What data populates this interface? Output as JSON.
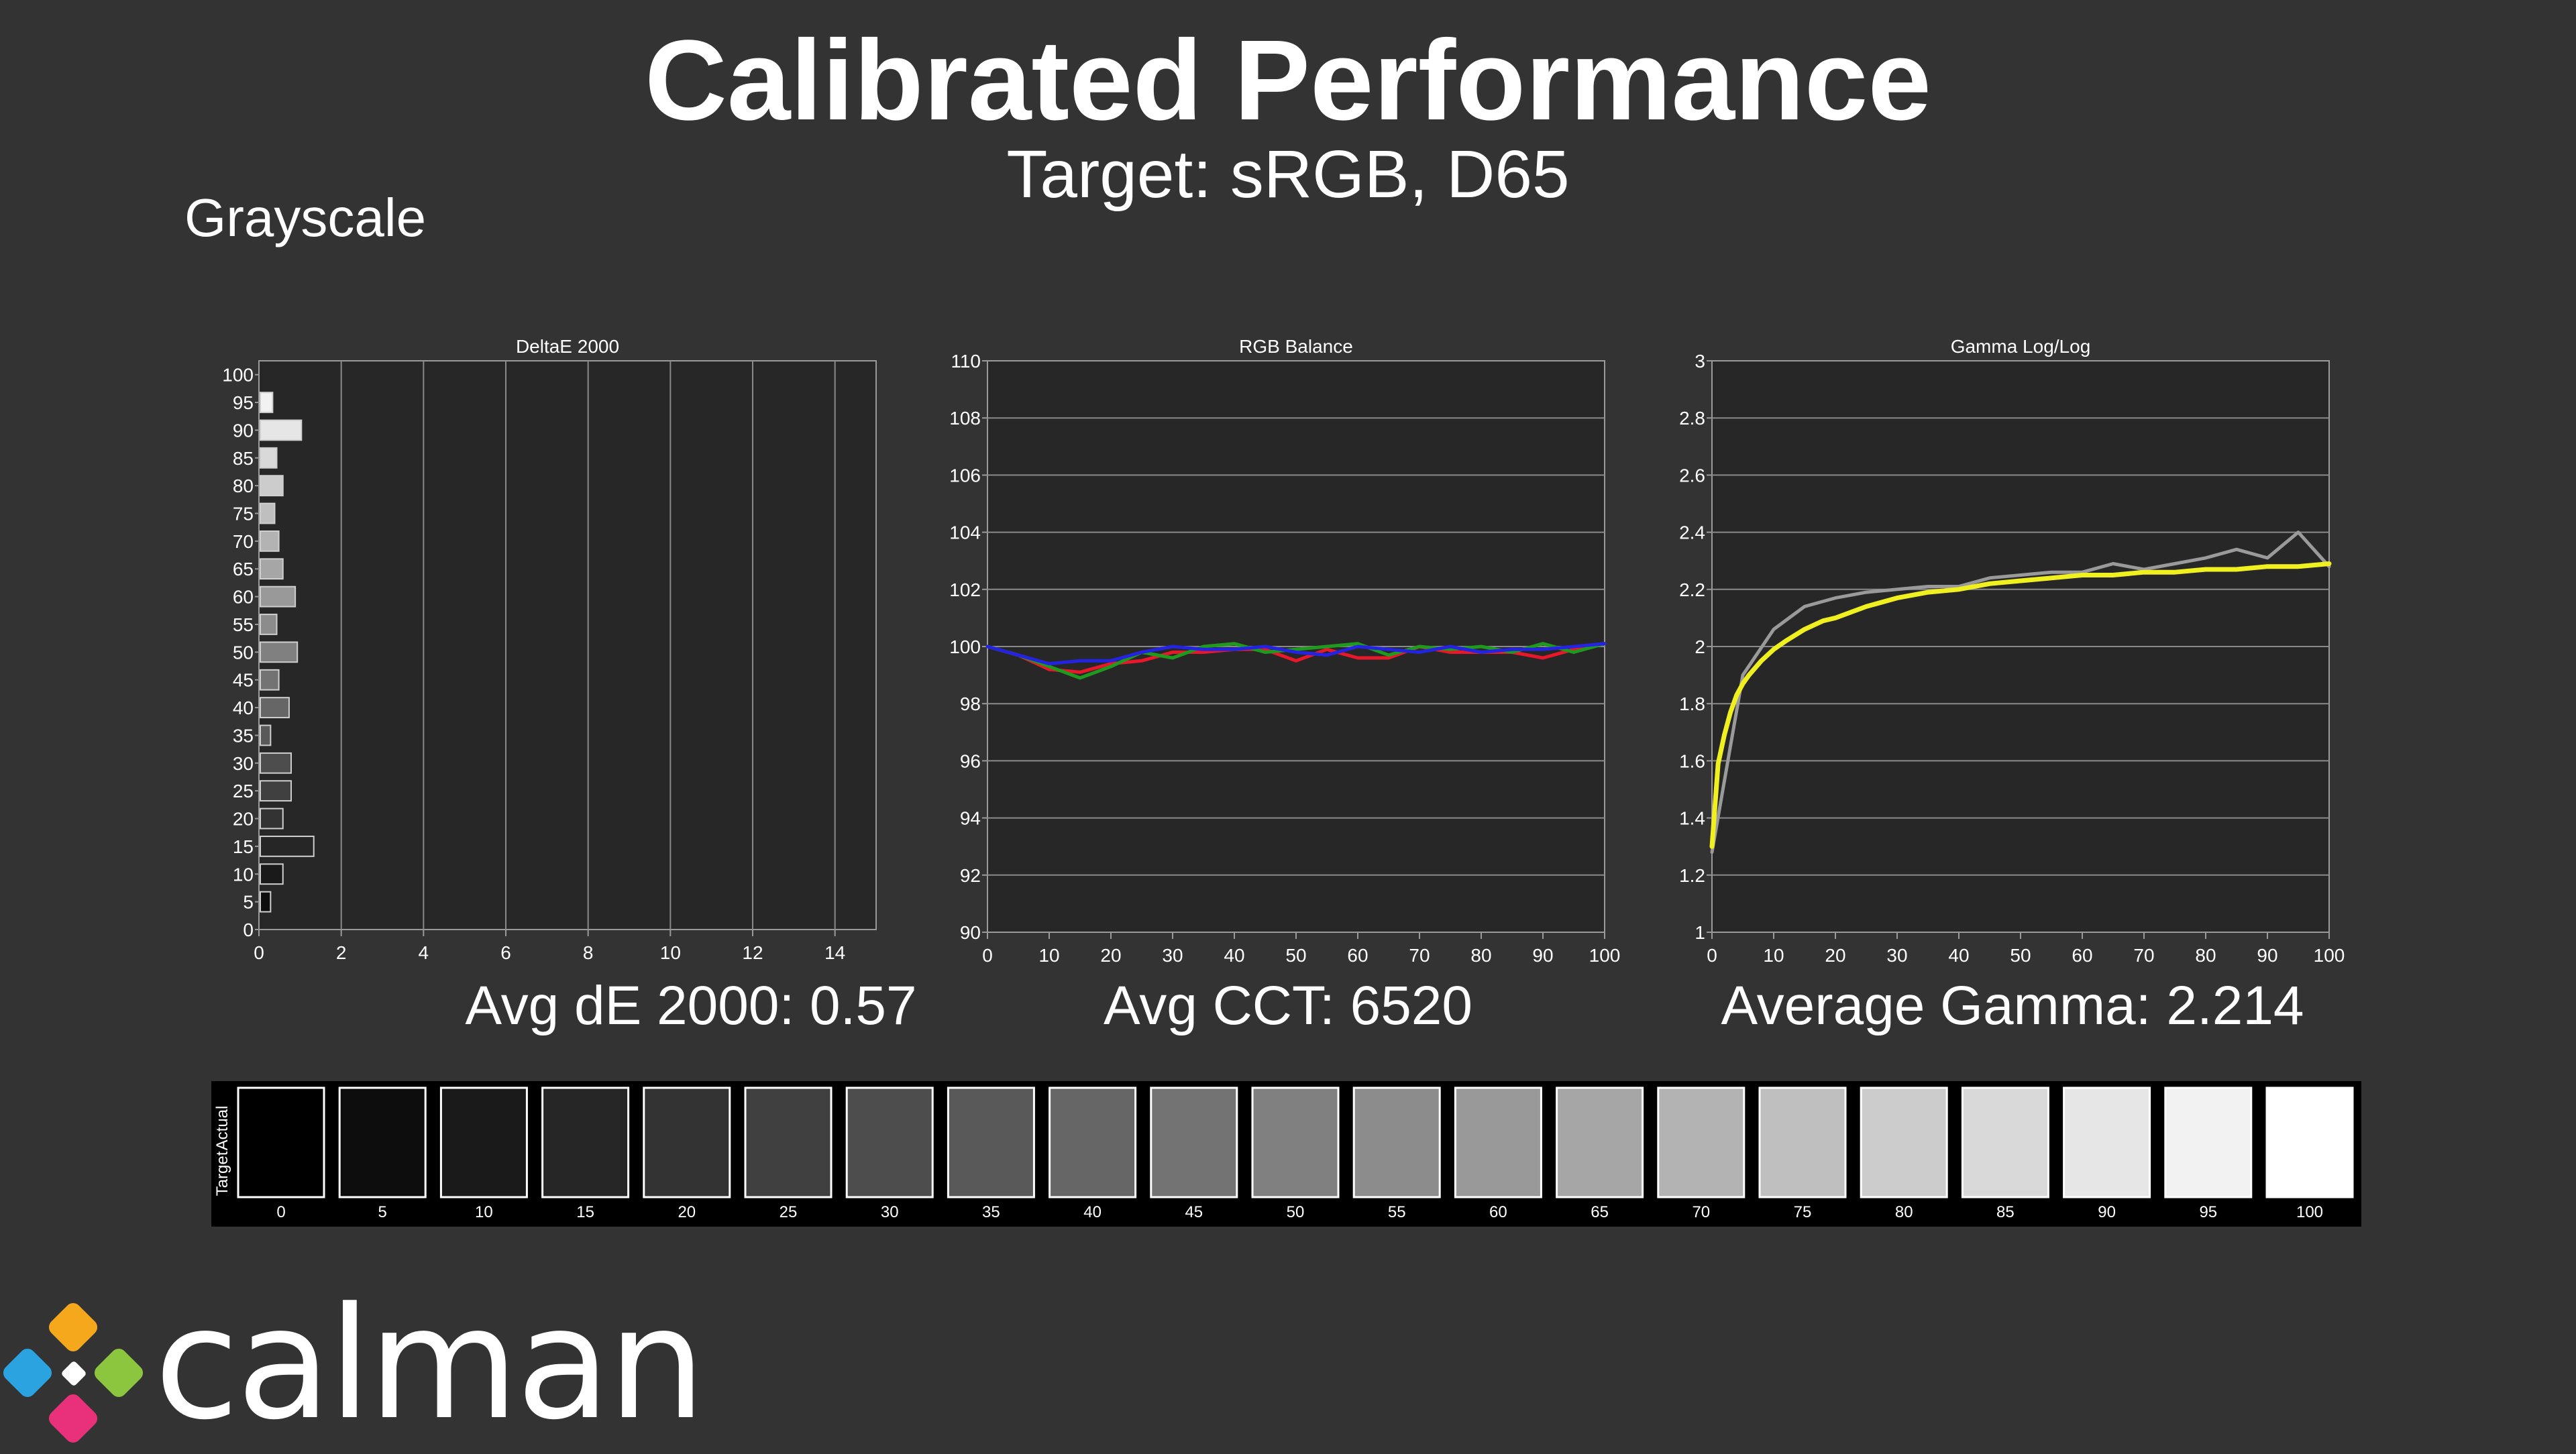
{
  "header": {
    "title": "Calibrated Performance",
    "subtitle": "Target: sRGB, D65",
    "section": "Grayscale"
  },
  "stats": {
    "delta_e": "Avg dE 2000: 0.57",
    "cct": "Avg CCT: 6520",
    "gamma": "Average Gamma: 2.214"
  },
  "colors": {
    "background": "#333333",
    "plot_bg": "#272727",
    "red": "#e8182b",
    "green": "#1f9a1f",
    "blue": "#2424e0",
    "gamma_actual": "#9a9a9a",
    "gamma_target": "#f0f020"
  },
  "chart_data": [
    {
      "type": "bar",
      "orientation": "horizontal",
      "title": "DeltaE 2000",
      "categories": [
        "0",
        "5",
        "10",
        "15",
        "20",
        "25",
        "30",
        "35",
        "40",
        "45",
        "50",
        "55",
        "60",
        "65",
        "70",
        "75",
        "80",
        "85",
        "90",
        "95",
        "100"
      ],
      "values": [
        0.0,
        0.25,
        0.55,
        1.3,
        0.55,
        0.75,
        0.75,
        0.25,
        0.7,
        0.45,
        0.9,
        0.4,
        0.85,
        0.55,
        0.45,
        0.35,
        0.55,
        0.4,
        1.0,
        0.3,
        0.0
      ],
      "xlim": [
        0,
        15
      ],
      "xticks": [
        "0",
        "2",
        "4",
        "6",
        "8",
        "10",
        "12",
        "14"
      ],
      "grid": true
    },
    {
      "type": "line",
      "title": "RGB Balance",
      "x": [
        0,
        5,
        10,
        15,
        20,
        25,
        30,
        35,
        40,
        45,
        50,
        55,
        60,
        65,
        70,
        75,
        80,
        85,
        90,
        95,
        100
      ],
      "xticks": [
        "0",
        "10",
        "20",
        "30",
        "40",
        "50",
        "60",
        "70",
        "80",
        "90",
        "100"
      ],
      "yticks": [
        "90",
        "92",
        "94",
        "96",
        "98",
        "100",
        "102",
        "104",
        "106",
        "108",
        "110"
      ],
      "xlim": [
        0,
        100
      ],
      "ylim": [
        90,
        110
      ],
      "grid": true,
      "series": [
        {
          "values": [
            100,
            99.7,
            99.2,
            99.1,
            99.4,
            99.5,
            99.8,
            99.8,
            99.9,
            99.9,
            99.5,
            99.9,
            99.6,
            99.6,
            100.0,
            99.8,
            99.8,
            99.8,
            99.6,
            99.9,
            100.1
          ]
        },
        {
          "values": [
            100,
            99.7,
            99.3,
            98.9,
            99.3,
            99.8,
            99.6,
            100.0,
            100.1,
            99.8,
            99.9,
            100.0,
            100.1,
            99.7,
            100.0,
            99.9,
            100.0,
            99.8,
            100.1,
            99.8,
            100.1
          ]
        },
        {
          "values": [
            100,
            99.7,
            99.4,
            99.5,
            99.5,
            99.8,
            100.0,
            99.9,
            99.9,
            100.0,
            99.8,
            99.7,
            100.0,
            99.9,
            99.8,
            100.0,
            99.8,
            99.9,
            99.9,
            100.0,
            100.1
          ]
        }
      ]
    },
    {
      "type": "line",
      "title": "Gamma Log/Log",
      "x": [
        0,
        5,
        10,
        15,
        20,
        25,
        30,
        35,
        40,
        45,
        50,
        55,
        60,
        65,
        70,
        75,
        80,
        85,
        90,
        95,
        100
      ],
      "xticks": [
        "0",
        "10",
        "20",
        "30",
        "40",
        "50",
        "60",
        "70",
        "80",
        "90",
        "100"
      ],
      "yticks": [
        "1",
        "1.2",
        "1.4",
        "1.6",
        "1.8",
        "2",
        "2.2",
        "2.4",
        "2.6",
        "2.8",
        "3"
      ],
      "xlim": [
        0,
        100
      ],
      "ylim": [
        1,
        3
      ],
      "grid": true,
      "series": [
        {
          "values": [
            1.28,
            1.9,
            2.06,
            2.14,
            2.17,
            2.19,
            2.2,
            2.21,
            2.21,
            2.24,
            2.25,
            2.26,
            2.26,
            2.29,
            2.27,
            2.29,
            2.31,
            2.34,
            2.31,
            2.4,
            2.28
          ]
        },
        {
          "x": [
            0,
            1,
            2,
            3,
            4,
            5,
            6,
            8,
            10,
            12,
            15,
            18,
            20,
            25,
            30,
            35,
            40,
            45,
            50,
            55,
            60,
            65,
            70,
            75,
            80,
            85,
            90,
            95,
            100
          ],
          "values": [
            1.3,
            1.59,
            1.69,
            1.77,
            1.83,
            1.87,
            1.9,
            1.95,
            1.99,
            2.02,
            2.06,
            2.09,
            2.1,
            2.14,
            2.17,
            2.19,
            2.2,
            2.22,
            2.23,
            2.24,
            2.25,
            2.25,
            2.26,
            2.26,
            2.27,
            2.27,
            2.28,
            2.28,
            2.29
          ]
        }
      ]
    },
    {
      "type": "table",
      "row_labels": [
        "Actual",
        "Target"
      ],
      "levels": [
        "0",
        "5",
        "10",
        "15",
        "20",
        "25",
        "30",
        "35",
        "40",
        "45",
        "50",
        "55",
        "60",
        "65",
        "70",
        "75",
        "80",
        "85",
        "90",
        "95",
        "100"
      ],
      "gray_values": [
        0,
        13,
        26,
        38,
        51,
        64,
        77,
        89,
        102,
        115,
        128,
        140,
        153,
        166,
        179,
        191,
        204,
        217,
        230,
        242,
        255
      ]
    }
  ]
}
